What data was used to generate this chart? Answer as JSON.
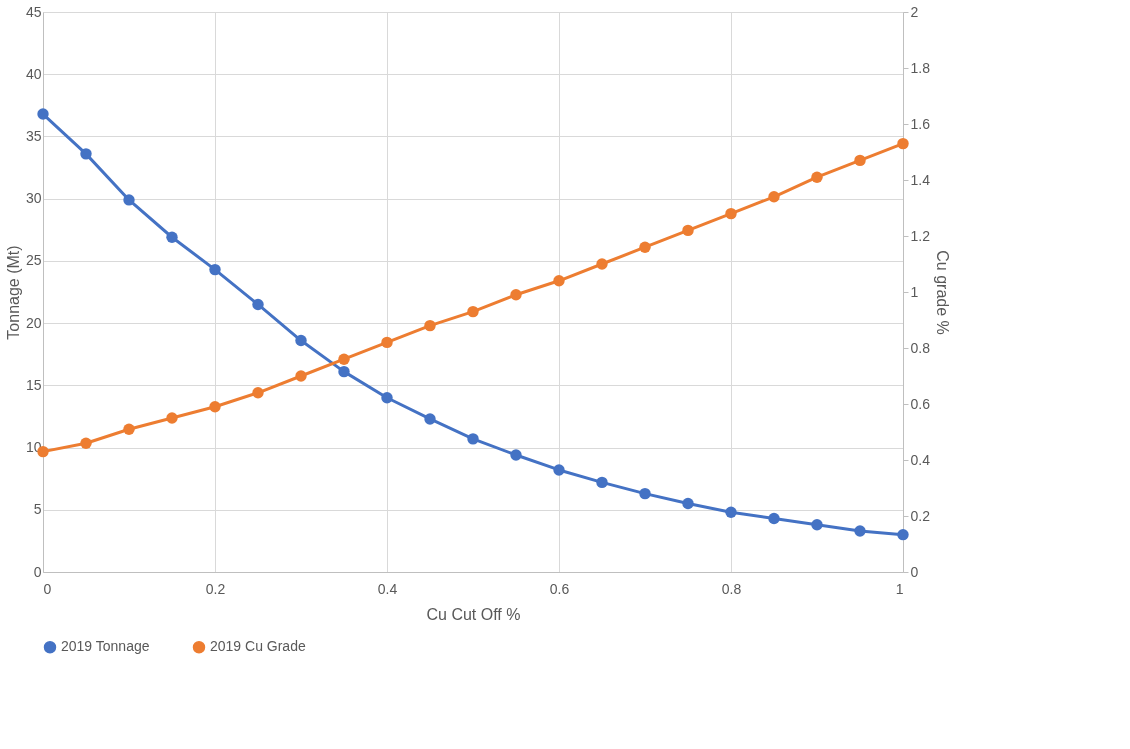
{
  "chart_data": {
    "type": "line",
    "xlabel": "Cu Cut Off %",
    "ylabel": "Tonnage (Mt)",
    "y2label": "Cu grade %",
    "x": [
      0,
      0.05,
      0.1,
      0.15,
      0.2,
      0.25,
      0.3,
      0.35,
      0.4,
      0.45,
      0.5,
      0.55,
      0.6,
      0.65,
      0.7,
      0.75,
      0.8,
      0.85,
      0.9,
      0.95,
      1
    ],
    "series": [
      {
        "name": "2019 Tonnage",
        "color": "#4472c4",
        "values": [
          36.8,
          33.6,
          29.9,
          26.9,
          24.3,
          21.5,
          18.6,
          16.1,
          14.0,
          12.3,
          10.7,
          9.4,
          8.2,
          7.2,
          6.3,
          5.5,
          4.8,
          4.3,
          3.8,
          3.3,
          3.0
        ]
      },
      {
        "name": "2019 Cu Grade",
        "color": "#ed7d31",
        "axis": "y2",
        "values": [
          0.43,
          0.46,
          0.51,
          0.55,
          0.59,
          0.64,
          0.7,
          0.76,
          0.82,
          0.88,
          0.93,
          0.99,
          1.04,
          1.1,
          1.16,
          1.22,
          1.28,
          1.34,
          1.41,
          1.47,
          1.53
        ]
      }
    ],
    "xlim": [
      0,
      1
    ],
    "xticks": [
      0,
      0.2,
      0.4,
      0.6,
      0.8,
      1
    ],
    "ylim": [
      0,
      45
    ],
    "yticks": [
      0,
      5,
      10,
      15,
      20,
      25,
      30,
      35,
      40,
      45
    ],
    "y2lim": [
      0,
      2
    ],
    "y2ticks": [
      0,
      0.2,
      0.4,
      0.6,
      0.8,
      1,
      1.2,
      1.4,
      1.6,
      1.8,
      2
    ],
    "grid": true,
    "legend": "bottom",
    "marker": "circle",
    "line_style": "solid"
  }
}
